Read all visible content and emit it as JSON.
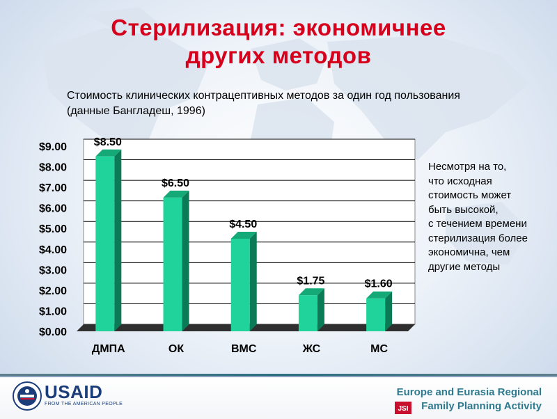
{
  "slide": {
    "title_line1": "Стерилизация: экономичнее",
    "title_line2": "других методов",
    "subtitle_line1": "Стоимость клинических контрацептивных методов за один год пользования",
    "subtitle_line2": "(данные Бангладеш, 1996)",
    "note_lines": [
      "Несмотря на то,",
      "что исходная",
      "стоимость может",
      "быть высокой,",
      "с течением времени",
      "стерилизация более",
      "экономична, чем",
      "другие методы"
    ]
  },
  "chart_data": {
    "type": "bar",
    "categories": [
      "ДМПА",
      "ОК",
      "ВМС",
      "ЖС",
      "МС"
    ],
    "values": [
      8.5,
      6.5,
      4.5,
      1.75,
      1.6
    ],
    "data_labels": [
      "$8.50",
      "$6.50",
      "$4.50",
      "$1.75",
      "$1.60"
    ],
    "y_ticks": [
      "$0.00",
      "$1.00",
      "$2.00",
      "$3.00",
      "$4.00",
      "$5.00",
      "$6.00",
      "$7.00",
      "$8.00",
      "$9.00"
    ],
    "ylim": [
      0,
      9
    ],
    "grid": true,
    "style": "3d",
    "colors": {
      "bar_front": "#1fd39b",
      "bar_side": "#0b7a56",
      "bar_top": "#14a977",
      "floor": "#2f2f2f",
      "grid": "#000000"
    }
  },
  "footer": {
    "usaid": "USAID",
    "usaid_sub": "FROM THE AMERICAN PEOPLE",
    "jsi": "JSI",
    "program_line1": "Europe and Eurasia Regional",
    "program_line2": "Family Planning Activity"
  }
}
